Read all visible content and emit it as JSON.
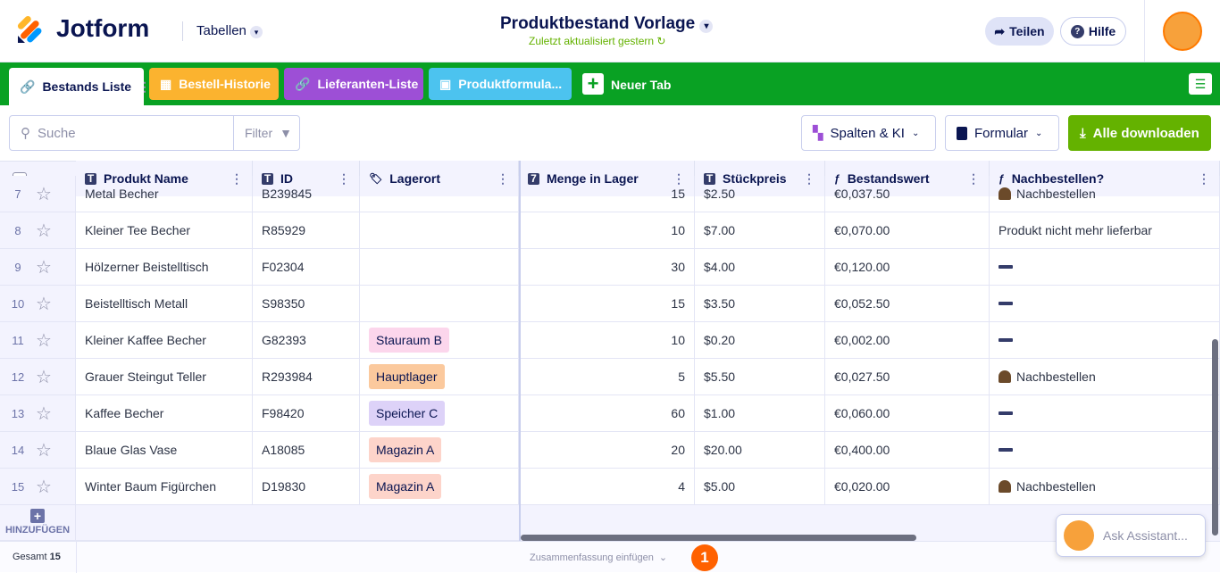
{
  "header": {
    "logo": "Jotform",
    "section": "Tabellen",
    "title": "Produktbestand Vorlage",
    "subtitle": "Zuletzt aktualisiert gestern",
    "share": "Teilen",
    "help": "Hilfe"
  },
  "tabs": [
    {
      "label": "Bestands Liste",
      "color": "#ffffff"
    },
    {
      "label": "Bestell-Historie",
      "color": "#fbb32f"
    },
    {
      "label": "Lieferanten-Liste",
      "color": "#9d4fd6"
    },
    {
      "label": "Produktformula...",
      "color": "#4cc3ef"
    }
  ],
  "new_tab": "Neuer Tab",
  "toolbar": {
    "search": "Suche",
    "filter": "Filter",
    "columns": "Spalten & KI",
    "form": "Formular",
    "download": "Alle downloaden"
  },
  "table": {
    "columns": [
      "Produkt Name",
      "ID",
      "Lagerort",
      "Menge in Lager",
      "Stückpreis",
      "Bestandswert",
      "Nachbestellen?"
    ],
    "rows": [
      [
        7,
        "Metal Becher",
        "B239845",
        null,
        15,
        "$2.50",
        "€0,037.50",
        "Nachbestellen"
      ],
      [
        8,
        "Kleiner Tee Becher",
        "R85929",
        null,
        10,
        "$7.00",
        "€0,070.00",
        "Produkt nicht mehr lieferbar"
      ],
      [
        9,
        "Hölzerner Beistelltisch",
        "F02304",
        null,
        30,
        "$4.00",
        "€0,120.00",
        null
      ],
      [
        10,
        "Beistelltisch Metall",
        "S98350",
        null,
        15,
        "$3.50",
        "€0,052.50",
        null
      ],
      [
        11,
        "Kleiner Kaffee Becher",
        "G82393",
        "Stauraum B",
        10,
        "$0.20",
        "€0,002.00",
        null
      ],
      [
        12,
        "Grauer Steingut Teller",
        "R293984",
        "Hauptlager",
        5,
        "$5.50",
        "€0,027.50",
        "Nachbestellen"
      ],
      [
        13,
        "Kaffee Becher",
        "F98420",
        "Speicher C",
        60,
        "$1.00",
        "€0,060.00",
        null
      ],
      [
        14,
        "Blaue Glas Vase",
        "A18085",
        "Magazin A",
        20,
        "$20.00",
        "€0,400.00",
        null
      ],
      [
        15,
        "Winter Baum Figürchen",
        "D19830",
        "Magazin A",
        4,
        "$5.00",
        "€0,020.00",
        "Nachbestellen"
      ]
    ]
  },
  "footer": {
    "add": "HINZUFÜGEN",
    "total_label": "Gesamt",
    "total": 15,
    "summary": "Zusammenfassung einfügen",
    "badge": 1,
    "assistant": "Ask Assistant..."
  }
}
